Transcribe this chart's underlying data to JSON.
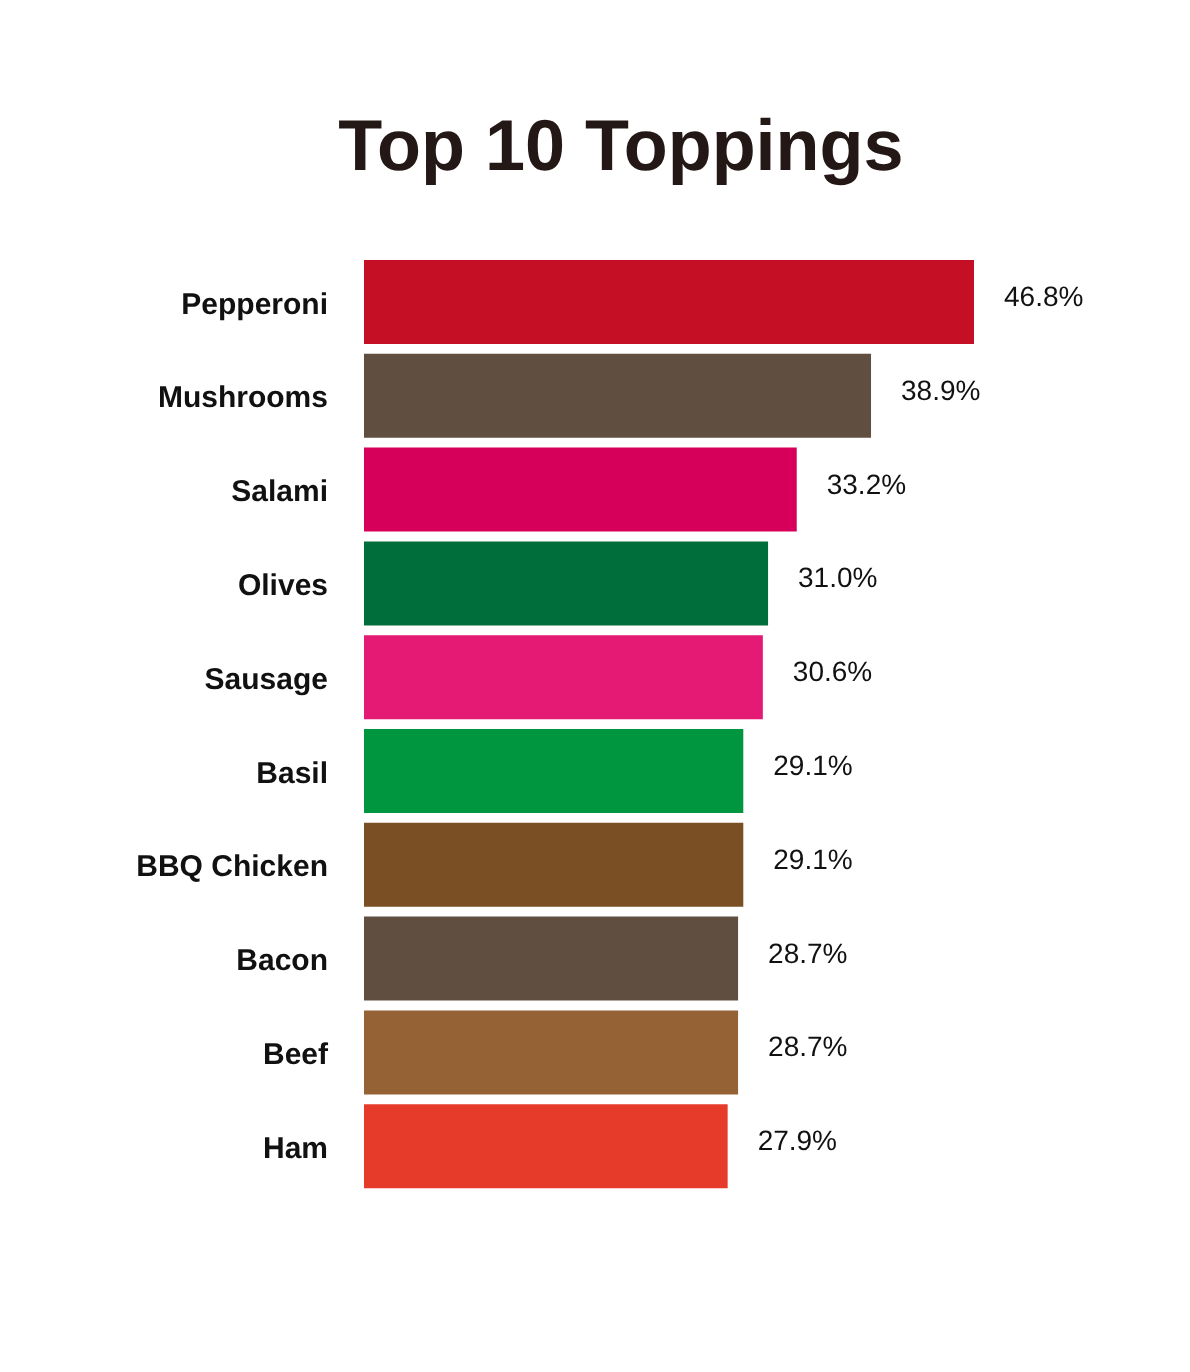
{
  "chart_data": {
    "type": "bar",
    "orientation": "horizontal",
    "title": "Top 10 Toppings",
    "categories": [
      "Pepperoni",
      "Mushrooms",
      "Salami",
      "Olives",
      "Sausage",
      "Basil",
      "BBQ Chicken",
      "Bacon",
      "Beef",
      "Ham"
    ],
    "values": [
      46.8,
      38.9,
      33.2,
      31.0,
      30.6,
      29.1,
      29.1,
      28.7,
      28.7,
      27.9
    ],
    "colors": [
      "#c50f25",
      "#604e40",
      "#d6005a",
      "#006e3a",
      "#e51a74",
      "#009640",
      "#7b4f24",
      "#604e40",
      "#956235",
      "#e63a2a"
    ],
    "value_labels": [
      "46.8%",
      "38.9%",
      "33.2%",
      "31.0%",
      "30.6%",
      "29.1%",
      "29.1%",
      "28.7%",
      "28.7%",
      "27.9%"
    ]
  }
}
